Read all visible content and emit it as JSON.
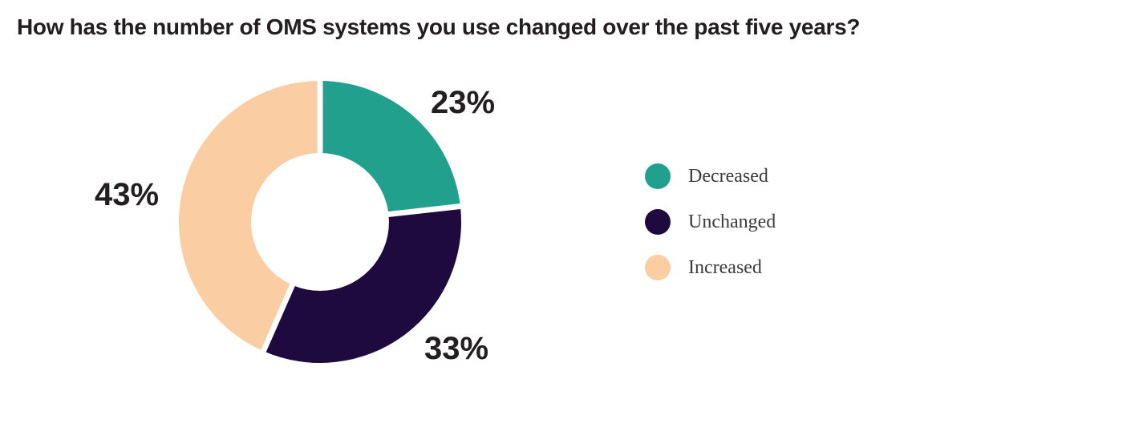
{
  "title": "How has the number of OMS systems you use changed over the past five years?",
  "chart_data": {
    "type": "pie",
    "subtype": "donut",
    "title": "How has the number of OMS systems you use changed over the past five years?",
    "segments": [
      {
        "label": "Decreased",
        "value": 23,
        "display": "23%",
        "color": "#21A18D"
      },
      {
        "label": "Unchanged",
        "value": 33,
        "display": "33%",
        "color": "#1E0A3E"
      },
      {
        "label": "Increased",
        "value": 43,
        "display": "43%",
        "color": "#FACDA3"
      }
    ],
    "start_angle_deg": 0,
    "direction": "clockwise",
    "donut_hole_ratio": 0.49,
    "separator_color": "#FFFFFF",
    "legend_position": "right",
    "labels_shown": "outside-percent"
  },
  "colors": {
    "background": "#FFFFFF",
    "title_text": "#231F20",
    "percent_text": "#231F20",
    "legend_text": "#3B3B3B"
  }
}
